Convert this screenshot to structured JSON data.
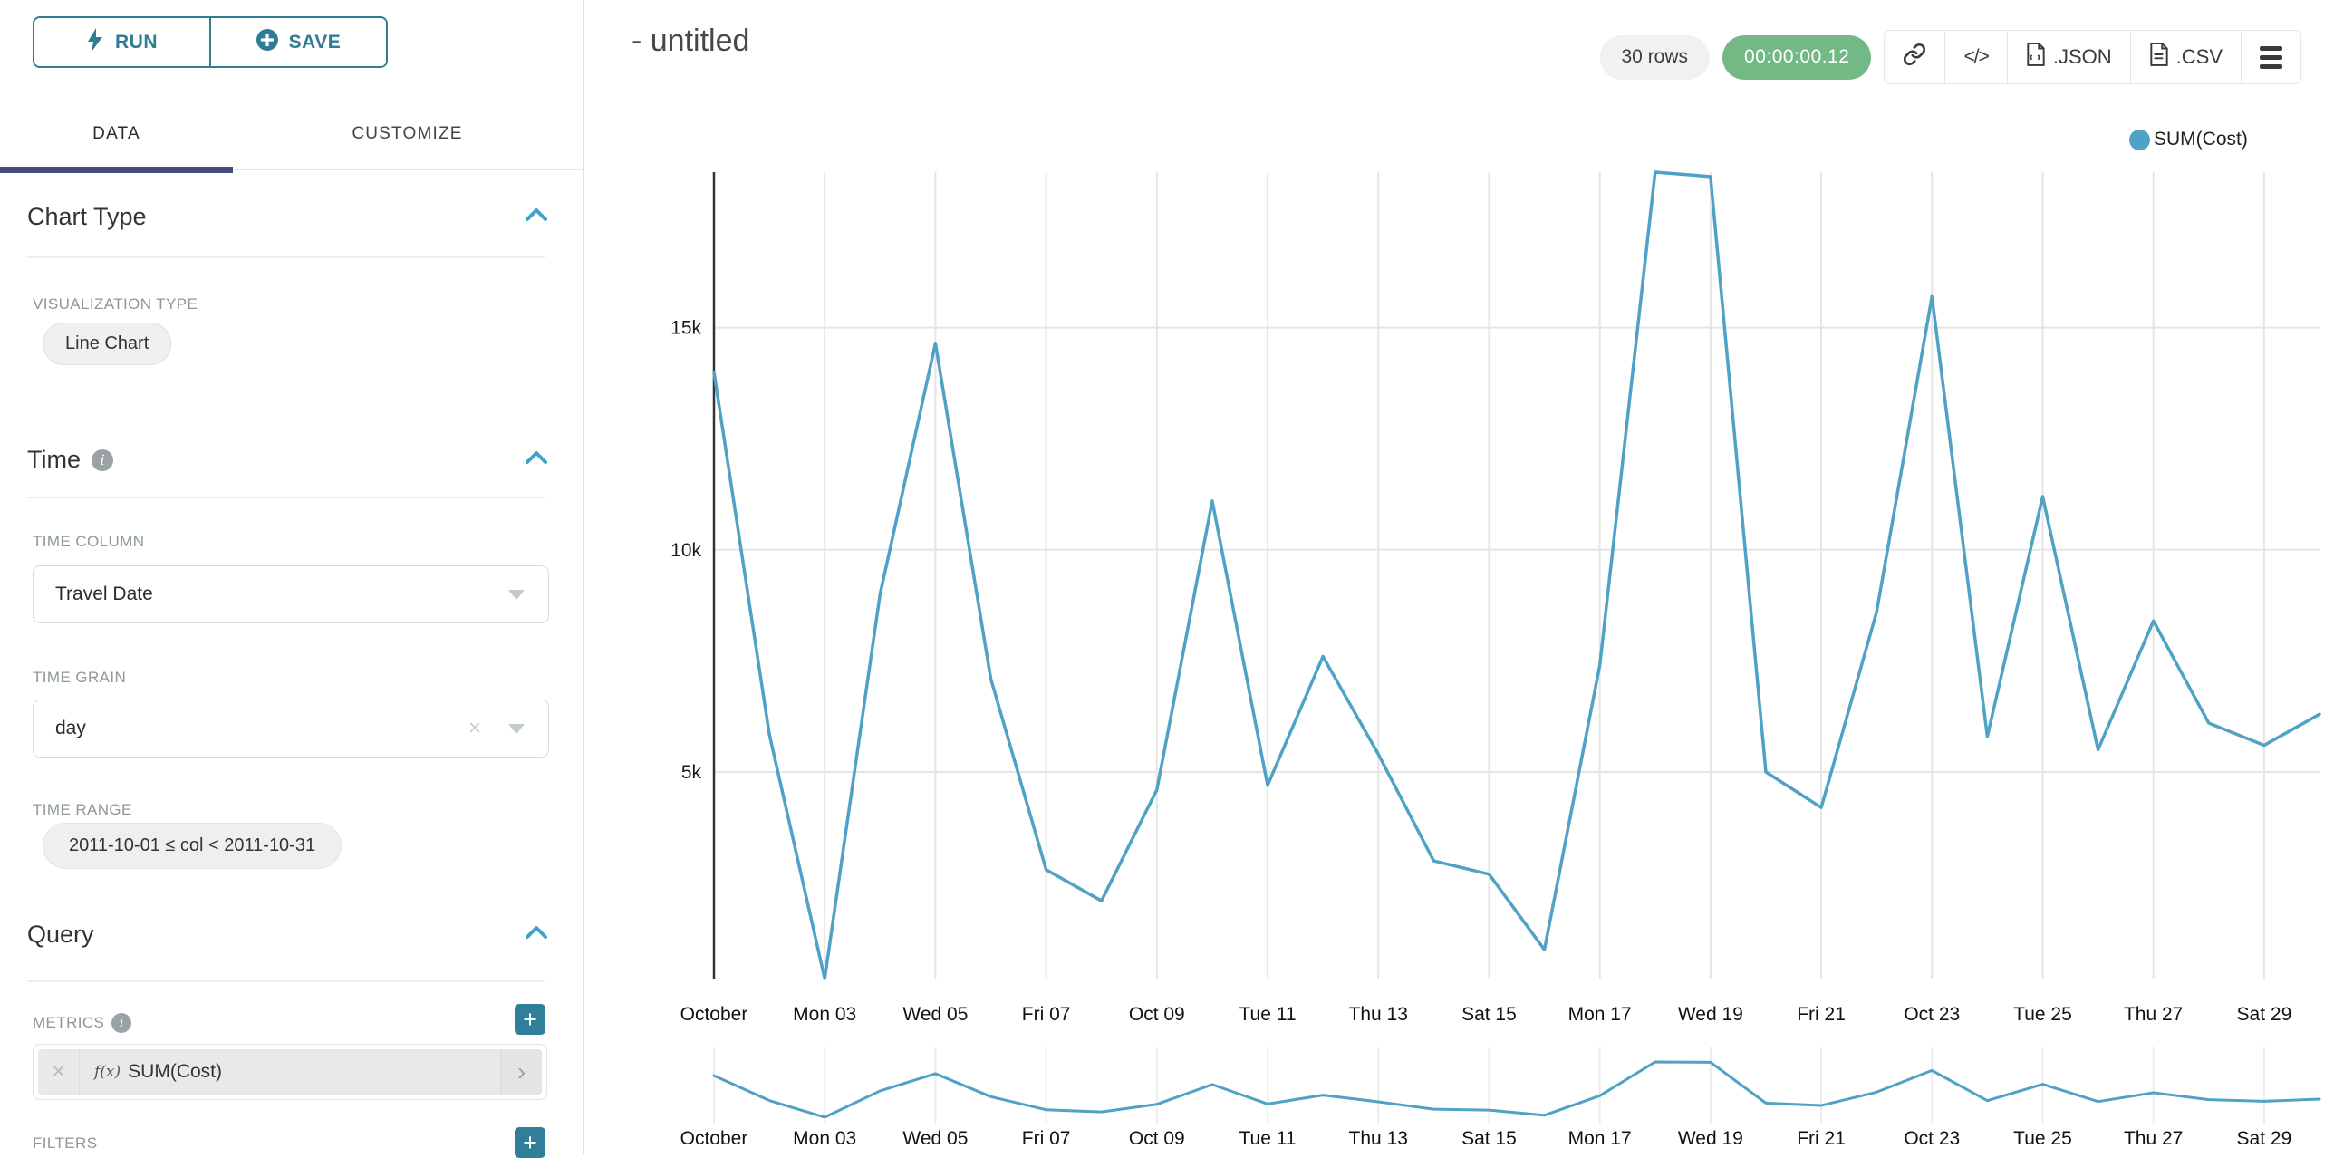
{
  "panel": {
    "run_label": "RUN",
    "save_label": "SAVE",
    "tabs": [
      {
        "label": "DATA",
        "active": true
      },
      {
        "label": "CUSTOMIZE",
        "active": false
      }
    ],
    "chart_type": {
      "title": "Chart Type",
      "viz_label": "VISUALIZATION TYPE",
      "viz_value": "Line Chart"
    },
    "time": {
      "title": "Time",
      "column_label": "TIME COLUMN",
      "column_value": "Travel Date",
      "grain_label": "TIME GRAIN",
      "grain_value": "day",
      "range_label": "TIME RANGE",
      "range_value": "2011-10-01 ≤ col < 2011-10-31"
    },
    "query": {
      "title": "Query",
      "metrics_label": "METRICS",
      "metric_prefix": "f(x)",
      "metric_value": "SUM(Cost)",
      "filters_label": "FILTERS"
    }
  },
  "header": {
    "title": "- untitled",
    "row_count": "30 rows",
    "duration": "00:00:00.12",
    "code_glyph": "</>",
    "json_label": ".JSON",
    "csv_label": ".CSV"
  },
  "icons": {
    "remove": "×",
    "chevron_right": "›",
    "plus": "+",
    "info": "i"
  },
  "colors": {
    "accent_teal": "#2e7d95",
    "tab_underline": "#454d7e",
    "line": "#4fa2c5",
    "timer_green": "#72b986",
    "pill_gray": "#f0f0f0",
    "label_gray": "#8d979c",
    "gridline": "#e5e5e5",
    "axis_line": "#333333"
  },
  "chart_data": {
    "type": "line",
    "title": "",
    "legend": [
      {
        "label": "SUM(Cost)",
        "color": "#4fa2c5"
      }
    ],
    "legend_position": "top-right",
    "grid": true,
    "line_color": "#4fa2c5",
    "x": [
      "2011-10-01",
      "2011-10-02",
      "2011-10-03",
      "2011-10-04",
      "2011-10-05",
      "2011-10-06",
      "2011-10-07",
      "2011-10-08",
      "2011-10-09",
      "2011-10-10",
      "2011-10-11",
      "2011-10-12",
      "2011-10-13",
      "2011-10-14",
      "2011-10-15",
      "2011-10-16",
      "2011-10-17",
      "2011-10-18",
      "2011-10-19",
      "2011-10-20",
      "2011-10-21",
      "2011-10-22",
      "2011-10-23",
      "2011-10-24",
      "2011-10-25",
      "2011-10-26",
      "2011-10-27",
      "2011-10-28",
      "2011-10-29",
      "2011-10-30"
    ],
    "series": [
      {
        "name": "SUM(Cost)",
        "values": [
          14000,
          5850,
          350,
          9000,
          14650,
          7100,
          2800,
          2100,
          4600,
          11100,
          4700,
          7600,
          5400,
          3000,
          2700,
          1000,
          7400,
          18500,
          18400,
          5000,
          4200,
          8600,
          15700,
          5800,
          11200,
          5500,
          8400,
          6100,
          5600,
          6300
        ]
      }
    ],
    "y_domain": [
      350,
      18500
    ],
    "y_tick_values": [
      5000,
      10000,
      15000
    ],
    "y_tick_labels": [
      "5k",
      "10k",
      "15k"
    ],
    "x_tick_positions": [
      0,
      2,
      4,
      6,
      8,
      10,
      12,
      14,
      16,
      18,
      20,
      22,
      24,
      26,
      28
    ],
    "x_tick_labels": [
      "October",
      "Mon 03",
      "Wed 05",
      "Fri 07",
      "Oct 09",
      "Tue 11",
      "Thu 13",
      "Sat 15",
      "Mon 17",
      "Wed 19",
      "Fri 21",
      "Oct 23",
      "Tue 25",
      "Thu 27",
      "Sat 29"
    ],
    "has_mini_range_chart": true
  }
}
